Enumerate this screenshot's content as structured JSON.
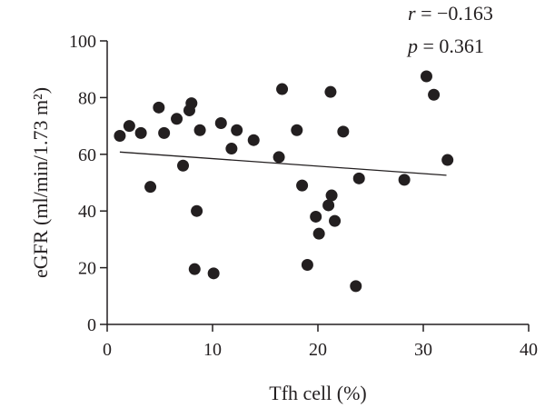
{
  "chart_data": {
    "type": "scatter",
    "title": "",
    "xlabel": "Tfh cell (%)",
    "ylabel": "eGFR (ml/min/1.73 m²)",
    "xlim": [
      0,
      40
    ],
    "ylim": [
      0,
      100
    ],
    "x_ticks": [
      "0",
      "10",
      "20",
      "30",
      "40"
    ],
    "y_ticks": [
      "0",
      "20",
      "40",
      "60",
      "80",
      "100"
    ],
    "grid": false,
    "points": [
      {
        "x": 1.2,
        "y": 66.5
      },
      {
        "x": 2.1,
        "y": 70.0
      },
      {
        "x": 3.2,
        "y": 67.5
      },
      {
        "x": 4.1,
        "y": 48.5
      },
      {
        "x": 4.9,
        "y": 76.5
      },
      {
        "x": 5.4,
        "y": 67.5
      },
      {
        "x": 6.6,
        "y": 72.5
      },
      {
        "x": 7.2,
        "y": 56.0
      },
      {
        "x": 7.8,
        "y": 75.5
      },
      {
        "x": 8.0,
        "y": 78.0
      },
      {
        "x": 8.3,
        "y": 19.5
      },
      {
        "x": 8.5,
        "y": 40.0
      },
      {
        "x": 8.8,
        "y": 68.5
      },
      {
        "x": 10.1,
        "y": 18.0
      },
      {
        "x": 10.8,
        "y": 71.0
      },
      {
        "x": 11.8,
        "y": 62.0
      },
      {
        "x": 12.3,
        "y": 68.5
      },
      {
        "x": 13.9,
        "y": 65.0
      },
      {
        "x": 16.3,
        "y": 59.0
      },
      {
        "x": 16.6,
        "y": 83.0
      },
      {
        "x": 18.0,
        "y": 68.5
      },
      {
        "x": 18.5,
        "y": 49.0
      },
      {
        "x": 19.0,
        "y": 21.0
      },
      {
        "x": 19.8,
        "y": 38.0
      },
      {
        "x": 20.1,
        "y": 32.0
      },
      {
        "x": 21.0,
        "y": 42.0
      },
      {
        "x": 21.2,
        "y": 82.0
      },
      {
        "x": 21.3,
        "y": 45.5
      },
      {
        "x": 21.6,
        "y": 36.5
      },
      {
        "x": 22.4,
        "y": 68.0
      },
      {
        "x": 23.6,
        "y": 13.5
      },
      {
        "x": 23.9,
        "y": 51.5
      },
      {
        "x": 28.2,
        "y": 51.0
      },
      {
        "x": 30.3,
        "y": 87.5
      },
      {
        "x": 31.0,
        "y": 81.0
      },
      {
        "x": 32.3,
        "y": 58.0
      }
    ],
    "trendline": {
      "x": [
        1.2,
        32.2
      ],
      "y": [
        60.8,
        52.6
      ]
    },
    "annotations": {
      "r_symbol": "r",
      "r_text": " = −0.163",
      "p_symbol": "p",
      "p_text": " = 0.361"
    }
  }
}
